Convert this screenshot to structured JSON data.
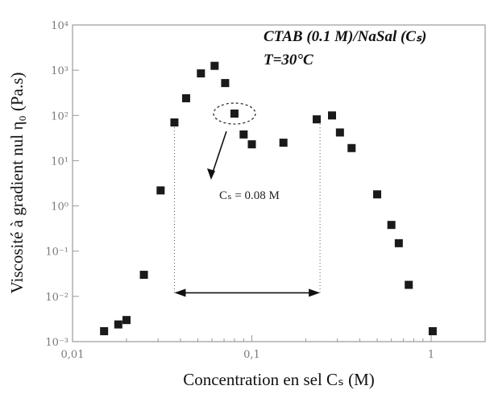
{
  "chart_data": {
    "type": "scatter",
    "title": "",
    "xlabel": "Concentration en sel Cₛ (M)",
    "ylabel": "Viscosité à gradient nul η₀ (Pa.s)",
    "xscale": "log",
    "yscale": "log",
    "xlim": [
      0.01,
      2
    ],
    "ylim": [
      0.001,
      10000
    ],
    "x_ticks": [
      {
        "value": 0.01,
        "label": "0,01"
      },
      {
        "value": 0.1,
        "label": "0,1"
      },
      {
        "value": 1,
        "label": "1"
      }
    ],
    "y_ticks": [
      {
        "value": 0.001,
        "label": "10⁻³"
      },
      {
        "value": 0.01,
        "label": "10⁻²"
      },
      {
        "value": 0.1,
        "label": "10⁻¹"
      },
      {
        "value": 1,
        "label": "10⁰"
      },
      {
        "value": 10,
        "label": "10¹"
      },
      {
        "value": 100,
        "label": "10²"
      },
      {
        "value": 1000,
        "label": "10³"
      },
      {
        "value": 10000,
        "label": "10⁴"
      }
    ],
    "grid": false,
    "marker": "square",
    "marker_color": "#1a1a1a",
    "points": [
      {
        "x": 0.015,
        "y": 0.0017
      },
      {
        "x": 0.018,
        "y": 0.0024
      },
      {
        "x": 0.02,
        "y": 0.003
      },
      {
        "x": 0.025,
        "y": 0.03
      },
      {
        "x": 0.031,
        "y": 2.2
      },
      {
        "x": 0.037,
        "y": 70
      },
      {
        "x": 0.043,
        "y": 240
      },
      {
        "x": 0.052,
        "y": 850
      },
      {
        "x": 0.062,
        "y": 1250
      },
      {
        "x": 0.071,
        "y": 520
      },
      {
        "x": 0.08,
        "y": 110
      },
      {
        "x": 0.09,
        "y": 38
      },
      {
        "x": 0.1,
        "y": 23
      },
      {
        "x": 0.15,
        "y": 25
      },
      {
        "x": 0.23,
        "y": 82
      },
      {
        "x": 0.28,
        "y": 100
      },
      {
        "x": 0.31,
        "y": 42
      },
      {
        "x": 0.36,
        "y": 19
      },
      {
        "x": 0.5,
        "y": 1.8
      },
      {
        "x": 0.6,
        "y": 0.38
      },
      {
        "x": 0.66,
        "y": 0.15
      },
      {
        "x": 0.75,
        "y": 0.018
      },
      {
        "x": 1.02,
        "y": 0.0017
      }
    ],
    "annotations": {
      "title_line1": "CTAB (0.1 M)/NaSal (Cₛ)",
      "title_line2": "T=30°C",
      "point_label": "Cₛ = 0.08 M",
      "highlight_x": 0.08,
      "highlight_y": 110,
      "range_x": [
        0.037,
        0.24
      ],
      "range_arrow_y": 0.012
    }
  }
}
